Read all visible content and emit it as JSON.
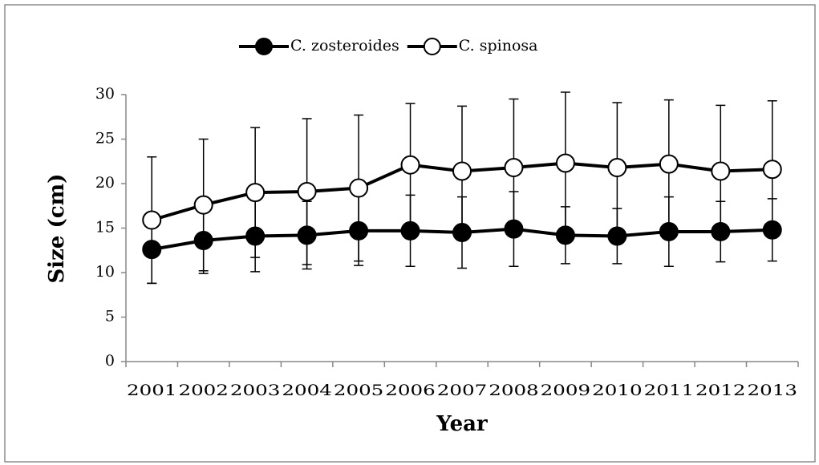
{
  "chart_data": {
    "type": "line",
    "categories": [
      "2001",
      "2002",
      "2003",
      "2004",
      "2005",
      "2006",
      "2007",
      "2008",
      "2009",
      "2010",
      "2011",
      "2012",
      "2013"
    ],
    "series": [
      {
        "name": "C. zosteroides",
        "color": "#000000",
        "marker": "filled",
        "values": [
          12.6,
          13.6,
          14.1,
          14.2,
          14.7,
          14.7,
          14.5,
          14.9,
          14.2,
          14.1,
          14.6,
          14.6,
          14.8
        ],
        "errors": [
          3.8,
          3.7,
          4.0,
          3.8,
          3.9,
          4.0,
          4.0,
          4.2,
          3.2,
          3.1,
          3.9,
          3.4,
          3.5
        ]
      },
      {
        "name": "C. spinosa",
        "color": "#000000",
        "marker": "open",
        "values": [
          15.9,
          17.6,
          19.0,
          19.1,
          19.5,
          22.1,
          21.4,
          21.8,
          22.3,
          21.8,
          22.2,
          21.4,
          21.6
        ],
        "errors": [
          7.1,
          7.4,
          7.3,
          8.2,
          8.2,
          6.9,
          7.3,
          7.7,
          8.0,
          7.3,
          7.2,
          7.4,
          7.7
        ]
      }
    ],
    "xlabel": "Year",
    "ylabel": "Size (cm)",
    "ylim": [
      0,
      30
    ],
    "yticks": [
      0,
      5,
      10,
      15,
      20,
      25,
      30
    ],
    "legend": "top"
  }
}
